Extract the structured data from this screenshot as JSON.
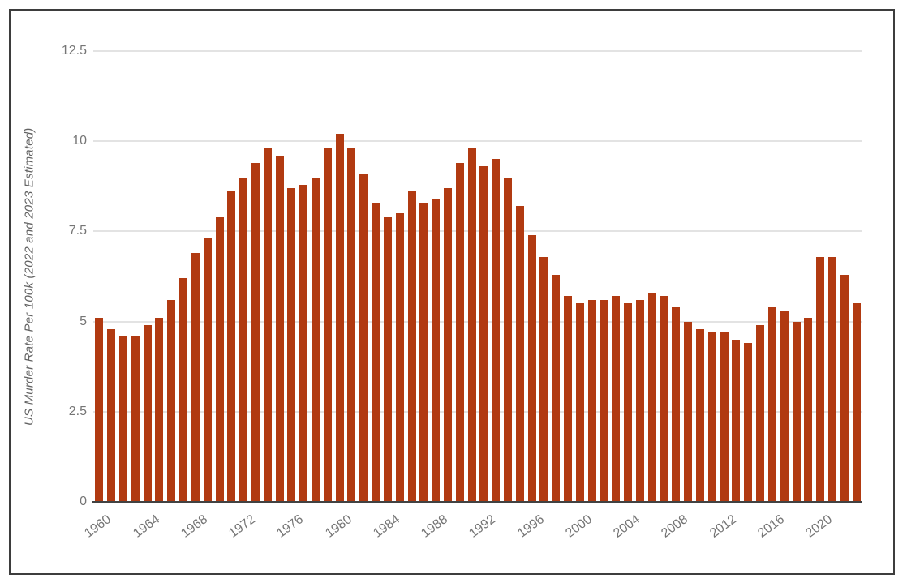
{
  "chart_data": {
    "type": "bar",
    "title": "",
    "xlabel": "",
    "ylabel": "US Murder Rate Per 100k (2022 and 2023 Estimated)",
    "ylim": [
      0,
      12.5
    ],
    "y_ticks": [
      0,
      2.5,
      5,
      7.5,
      10,
      12.5
    ],
    "y_tick_labels": [
      "0",
      "2.5",
      "5",
      "7.5",
      "10",
      "12.5"
    ],
    "x_tick_step": 4,
    "x_tick_labels": [
      "1960",
      "1964",
      "1968",
      "1972",
      "1976",
      "1980",
      "1984",
      "1988",
      "1992",
      "1996",
      "2000",
      "2004",
      "2008",
      "2012",
      "2016",
      "2020"
    ],
    "grid": true,
    "legend": false,
    "categories": [
      1960,
      1961,
      1962,
      1963,
      1964,
      1965,
      1966,
      1967,
      1968,
      1969,
      1970,
      1971,
      1972,
      1973,
      1974,
      1975,
      1976,
      1977,
      1978,
      1979,
      1980,
      1981,
      1982,
      1983,
      1984,
      1985,
      1986,
      1987,
      1988,
      1989,
      1990,
      1991,
      1992,
      1993,
      1994,
      1995,
      1996,
      1997,
      1998,
      1999,
      2000,
      2001,
      2002,
      2003,
      2004,
      2005,
      2006,
      2007,
      2008,
      2009,
      2010,
      2011,
      2012,
      2013,
      2014,
      2015,
      2016,
      2017,
      2018,
      2019,
      2020,
      2021,
      2022,
      2023
    ],
    "values": [
      5.1,
      4.8,
      4.6,
      4.6,
      4.9,
      5.1,
      5.6,
      6.2,
      6.9,
      7.3,
      7.9,
      8.6,
      9.0,
      9.4,
      9.8,
      9.6,
      8.7,
      8.8,
      9.0,
      9.8,
      10.2,
      9.8,
      9.1,
      8.3,
      7.9,
      8.0,
      8.6,
      8.3,
      8.4,
      8.7,
      9.4,
      9.8,
      9.3,
      9.5,
      9.0,
      8.2,
      7.4,
      6.8,
      6.3,
      5.7,
      5.5,
      5.6,
      5.6,
      5.7,
      5.5,
      5.6,
      5.8,
      5.7,
      5.4,
      5.0,
      4.8,
      4.7,
      4.7,
      4.5,
      4.4,
      4.9,
      5.4,
      5.3,
      5.0,
      5.1,
      6.8,
      6.8,
      6.3,
      5.5
    ]
  },
  "colors": {
    "bar": "#b13a11",
    "gridline": "#e3e3e3",
    "axis_line": "#424242",
    "tick_text": "#757575",
    "title_text": "#636363",
    "frame_border": "#3d3d3d",
    "background": "#ffffff"
  }
}
